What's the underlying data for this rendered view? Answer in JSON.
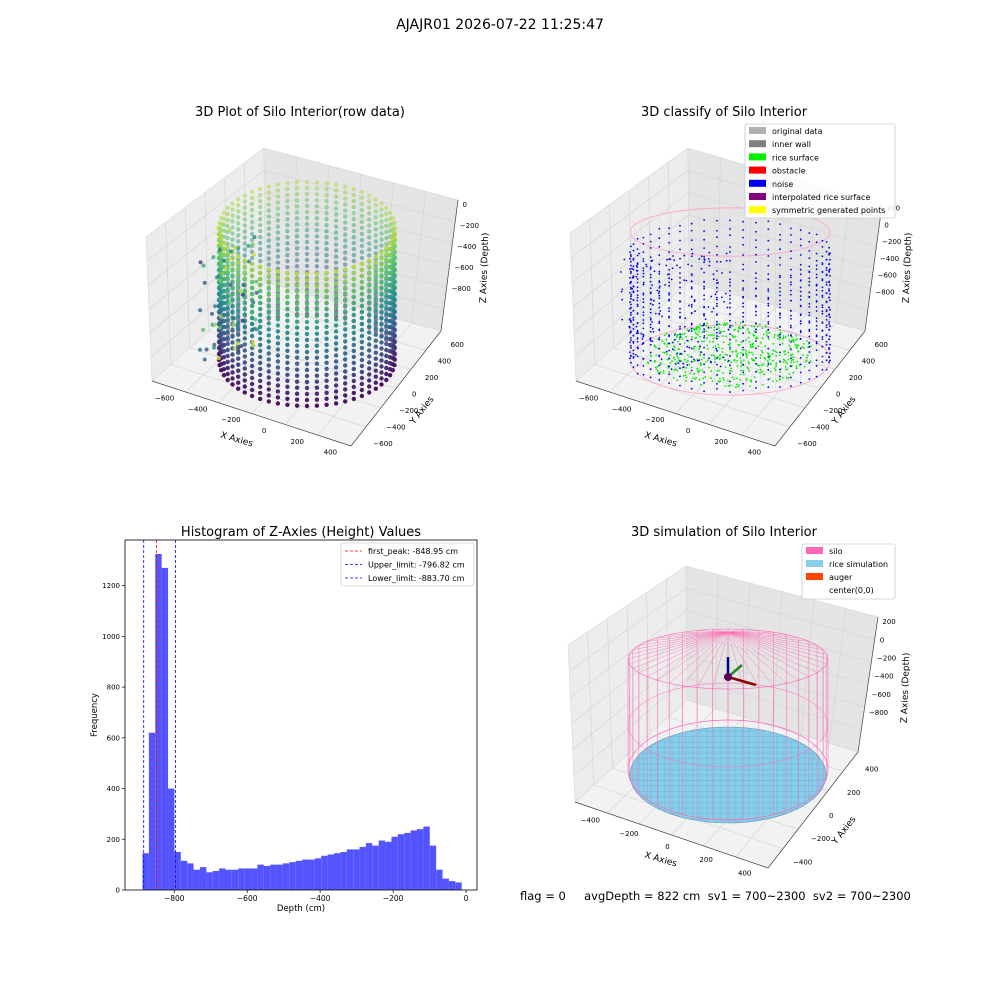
{
  "suptitle": "AJAJR01 2026-07-22 11:25:47",
  "footer": "flag = 0     avgDepth = 822 cm  sv1 = 700~2300  sv2 = 700~2300",
  "colors": {
    "viridis": [
      "#440154",
      "#3b528b",
      "#21918c",
      "#5ec962",
      "#fde725"
    ],
    "original_data": "#b0b0b0",
    "inner_wall": "#808080",
    "rice_surface": "#00ee00",
    "obstacle": "#ff0000",
    "noise": "#0000ee",
    "interpolated_rice_surface": "#800080",
    "symmetric_generated_points": "#ffff00",
    "silo": "#ff69b4",
    "rice_simulation": "#87ceeb",
    "auger": "#ff4500",
    "hist_bar": "#4b4bff"
  },
  "chart_data": [
    {
      "type": "scatter",
      "title": "3D Plot of Silo Interior(row data)",
      "xlabel": "X Axies",
      "ylabel": "Y Axies",
      "zlabel": "Z Axies (Depth)",
      "xticks": [
        "−600",
        "−400",
        "−200",
        "0",
        "200",
        "400"
      ],
      "yticks": [
        "−600",
        "−400",
        "−200",
        "0",
        "200",
        "400",
        "600"
      ],
      "zticks": [
        "0",
        "−200",
        "−400",
        "−600",
        "−800"
      ],
      "xlim": [
        -650,
        480
      ],
      "ylim": [
        -650,
        650
      ],
      "zlim": [
        -900,
        50
      ],
      "colormap": "viridis",
      "series": [
        {
          "shape": "cylinder wall scan lines",
          "radius": 450,
          "z_range": [
            -880,
            -30
          ]
        }
      ]
    },
    {
      "type": "scatter",
      "title": "3D classify of Silo Interior",
      "xlabel": "X Axies",
      "ylabel": "Y Axies",
      "zlabel": "Z Axies (Depth)",
      "xticks": [
        "−600",
        "−400",
        "−200",
        "0",
        "200",
        "400"
      ],
      "yticks": [
        "−600",
        "−400",
        "−200",
        "0",
        "200",
        "400",
        "600"
      ],
      "zticks": [
        "200",
        "0",
        "−200",
        "−400",
        "−600",
        "−800"
      ],
      "legend": [
        {
          "name": "original data",
          "color": "#b0b0b0"
        },
        {
          "name": "inner wall",
          "color": "#808080"
        },
        {
          "name": "rice surface",
          "color": "#00ee00"
        },
        {
          "name": "obstacle",
          "color": "#ff0000"
        },
        {
          "name": "noise",
          "color": "#0000ee"
        },
        {
          "name": "interpolated rice surface",
          "color": "#800080"
        },
        {
          "name": "symmetric generated points",
          "color": "#ffff00"
        }
      ],
      "legend_position": "top-right"
    },
    {
      "type": "bar",
      "title": "Histogram of Z-Axies (Height) Values",
      "xlabel": "Depth (cm)",
      "ylabel": "Frequency",
      "xlim": [
        -935,
        30
      ],
      "ylim": [
        0,
        1380
      ],
      "xticks": [
        -800,
        -600,
        -400,
        -200,
        0
      ],
      "yticks": [
        0,
        200,
        400,
        600,
        800,
        1000,
        1200
      ],
      "bin_width": 17.5,
      "bins_start": -887,
      "values": [
        145,
        620,
        1325,
        1270,
        400,
        150,
        115,
        105,
        80,
        90,
        70,
        75,
        85,
        80,
        80,
        85,
        85,
        85,
        100,
        95,
        100,
        100,
        105,
        110,
        115,
        120,
        120,
        125,
        135,
        140,
        145,
        150,
        160,
        160,
        170,
        185,
        175,
        195,
        190,
        210,
        220,
        225,
        235,
        240,
        250,
        175,
        80,
        45,
        35,
        30
      ],
      "vlines": [
        {
          "label": "first_peak: -848.95 cm",
          "x": -848.95,
          "color": "#ff0000"
        },
        {
          "label": "Upper_limit: -796.82 cm",
          "x": -796.82,
          "color": "#0000ff"
        },
        {
          "label": "Lower_limit: -883.70 cm",
          "x": -883.7,
          "color": "#0000ff"
        }
      ],
      "legend_position": "top-right"
    },
    {
      "type": "scatter",
      "title": "3D simulation of Silo Interior",
      "xlabel": "X Axies",
      "ylabel": "Y Axies",
      "zlabel": "Z Axies (Depth)",
      "xticks": [
        "−400",
        "−200",
        "0",
        "200",
        "400"
      ],
      "yticks": [
        "−400",
        "−200",
        "0",
        "200",
        "400"
      ],
      "zticks": [
        "200",
        "0",
        "−200",
        "−400",
        "−600",
        "−800"
      ],
      "legend": [
        {
          "name": "silo",
          "color": "#ff69b4"
        },
        {
          "name": "rice simulation",
          "color": "#87ceeb"
        },
        {
          "name": "auger",
          "color": "#ff4500"
        },
        {
          "name": "center(0,0)",
          "color": ""
        }
      ],
      "legend_position": "top-right",
      "silo_radius": 450,
      "rice_depth": -822
    }
  ]
}
